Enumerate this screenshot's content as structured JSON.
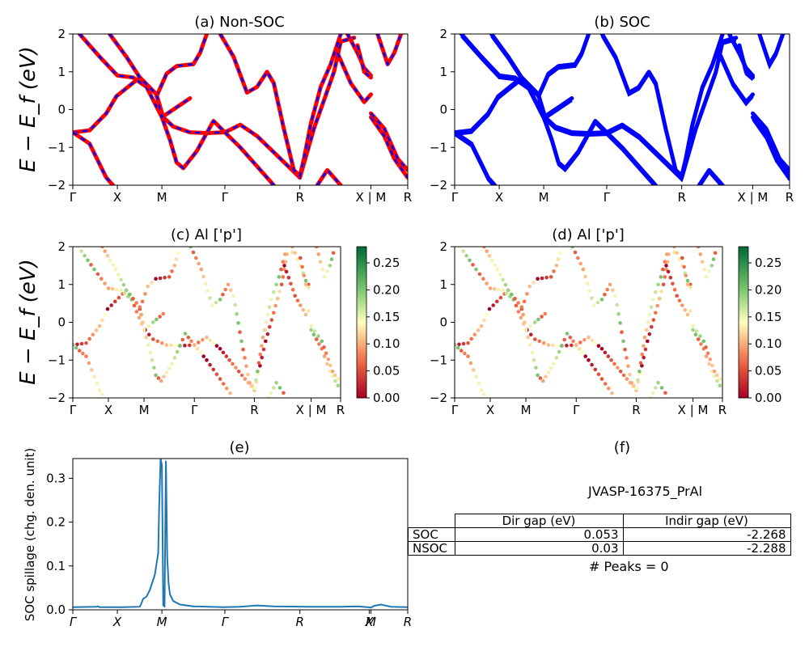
{
  "panels": {
    "a": {
      "title": "(a) Non-SOC",
      "ylabel": "E − E_f (eV)"
    },
    "b": {
      "title": "(b) SOC"
    },
    "c": {
      "title": "(c)  Al ['p']",
      "ylabel": "E − E_f (eV)"
    },
    "d": {
      "title": "(d) Al ['p']"
    },
    "e": {
      "title": "(e)",
      "ylabel": "SOC spillage (chg. den. unit)"
    },
    "f": {
      "title": "(f)"
    }
  },
  "table": {
    "title": "JVASP-16375_PrAl",
    "headers": [
      "",
      "Dir gap (eV)",
      "Indir gap (eV)"
    ],
    "rows": [
      {
        "label": "SOC",
        "dir": "0.053",
        "indir": "-2.268"
      },
      {
        "label": "NSOC",
        "dir": "0.03",
        "indir": "-2.288"
      }
    ],
    "peaks": "# Peaks = 0"
  },
  "chart_data": [
    {
      "type": "line",
      "title": "(a) Non-SOC",
      "ylabel": "E − E_f (eV)",
      "ylim": [
        -2,
        2
      ],
      "yticks": [
        "2",
        "1",
        "0",
        "−1",
        "−2"
      ],
      "kpath_labels": [
        "Γ",
        "X",
        "M",
        "Γ",
        "R",
        "X | M",
        "R"
      ],
      "kpath_pos": [
        0,
        0.133,
        0.266,
        0.454,
        0.678,
        0.89,
        1
      ],
      "colors": {
        "bands": "#ff0000",
        "overlay": "#0000ff"
      },
      "series": [
        {
          "values": [
            [
              0,
              -0.6
            ],
            [
              0.05,
              -0.55
            ],
            [
              0.1,
              -0.1
            ],
            [
              0.13,
              0.35
            ],
            [
              0.2,
              0.85
            ],
            [
              0.25,
              0.4
            ],
            [
              0.27,
              -0.2
            ],
            [
              0.3,
              -0.45
            ],
            [
              0.35,
              -0.6
            ],
            [
              0.4,
              -0.62
            ],
            [
              0.454,
              -0.6
            ],
            [
              0.5,
              -0.4
            ],
            [
              0.55,
              -0.7
            ],
            [
              0.62,
              -1.3
            ],
            [
              0.678,
              -1.8
            ],
            [
              0.72,
              -0.5
            ],
            [
              0.78,
              1.0
            ],
            [
              0.8,
              1.8
            ],
            [
              0.84,
              1.9
            ]
          ]
        },
        {
          "values": [
            [
              0,
              -0.6
            ],
            [
              0.05,
              -0.9
            ],
            [
              0.1,
              -1.8
            ],
            [
              0.12,
              -2.0
            ]
          ]
        },
        {
          "values": [
            [
              0.02,
              2.0
            ],
            [
              0.08,
              1.4
            ],
            [
              0.133,
              0.9
            ],
            [
              0.18,
              0.85
            ],
            [
              0.22,
              0.6
            ],
            [
              0.266,
              -0.2
            ],
            [
              0.29,
              -0.8
            ],
            [
              0.31,
              -1.4
            ],
            [
              0.33,
              -1.55
            ],
            [
              0.37,
              -1.1
            ],
            [
              0.42,
              -0.3
            ],
            [
              0.454,
              -0.6
            ]
          ]
        },
        {
          "values": [
            [
              0.25,
              0.35
            ],
            [
              0.28,
              0.95
            ],
            [
              0.31,
              1.15
            ],
            [
              0.36,
              1.2
            ],
            [
              0.38,
              1.5
            ],
            [
              0.4,
              2.0
            ]
          ]
        },
        {
          "values": [
            [
              0.11,
              2.0
            ],
            [
              0.16,
              1.4
            ],
            [
              0.2,
              0.85
            ],
            [
              0.25,
              0.4
            ],
            [
              0.266,
              -0.2
            ],
            [
              0.3,
              0.0
            ],
            [
              0.35,
              0.3
            ]
          ]
        },
        {
          "values": [
            [
              0.44,
              2.0
            ],
            [
              0.48,
              1.4
            ],
            [
              0.52,
              0.45
            ],
            [
              0.55,
              0.6
            ],
            [
              0.58,
              1.0
            ],
            [
              0.6,
              0.7
            ],
            [
              0.63,
              -0.5
            ],
            [
              0.66,
              -1.6
            ],
            [
              0.678,
              -1.75
            ],
            [
              0.69,
              -1.3
            ],
            [
              0.71,
              -0.4
            ],
            [
              0.74,
              0.6
            ],
            [
              0.77,
              1.2
            ],
            [
              0.8,
              2.0
            ]
          ]
        },
        {
          "values": [
            [
              0.454,
              -0.6
            ],
            [
              0.5,
              -1.0
            ],
            [
              0.55,
              -1.5
            ],
            [
              0.6,
              -2.0
            ]
          ]
        },
        {
          "values": [
            [
              0.73,
              -2.0
            ],
            [
              0.76,
              -1.6
            ],
            [
              0.8,
              -2.0
            ]
          ]
        },
        {
          "values": [
            [
              0.82,
              2.0
            ],
            [
              0.85,
              1.5
            ],
            [
              0.87,
              1.1
            ],
            [
              0.89,
              0.9
            ]
          ]
        },
        {
          "values": [
            [
              0.79,
              1.5
            ],
            [
              0.83,
              0.7
            ],
            [
              0.87,
              0.2
            ],
            [
              0.89,
              0.4
            ]
          ]
        },
        {
          "values": [
            [
              0.89,
              -0.2
            ],
            [
              0.93,
              -0.7
            ],
            [
              0.96,
              -1.3
            ],
            [
              1,
              -1.8
            ]
          ]
        },
        {
          "values": [
            [
              0.89,
              -0.1
            ],
            [
              0.93,
              -0.5
            ],
            [
              0.97,
              -1.3
            ],
            [
              1,
              -1.6
            ]
          ]
        },
        {
          "values": [
            [
              0.85,
              1.7
            ],
            [
              0.87,
              1.0
            ],
            [
              0.89,
              0.85
            ]
          ]
        },
        {
          "values": [
            [
              0.91,
              2.0
            ],
            [
              0.94,
              1.2
            ],
            [
              0.96,
              1.5
            ],
            [
              0.98,
              2.0
            ]
          ]
        }
      ]
    },
    {
      "type": "line",
      "title": "(b) SOC",
      "ylim": [
        -2,
        2
      ],
      "yticks": [
        "2",
        "1",
        "0",
        "−1",
        "−2"
      ],
      "kpath_labels": [
        "Γ",
        "X",
        "M",
        "Γ",
        "R",
        "X | M",
        "R"
      ],
      "kpath_pos": [
        0,
        0.133,
        0.266,
        0.454,
        0.678,
        0.89,
        1
      ],
      "colors": {
        "bands": "#0000ff"
      }
    },
    {
      "type": "scatter",
      "title": "(c)  Al ['p']",
      "ylabel": "E − E_f (eV)",
      "ylim": [
        -2,
        2
      ],
      "yticks": [
        "2",
        "1",
        "0",
        "−1",
        "−2"
      ],
      "kpath_labels": [
        "Γ",
        "X",
        "M",
        "Γ",
        "R",
        "X | M",
        "R"
      ],
      "kpath_pos": [
        0,
        0.133,
        0.266,
        0.454,
        0.678,
        0.89,
        1
      ],
      "colorbar": {
        "min": 0.0,
        "max": 0.28,
        "ticks": [
          "0.25",
          "0.20",
          "0.15",
          "0.10",
          "0.05",
          "0.00"
        ],
        "colormap": "RdYlGn"
      }
    },
    {
      "type": "scatter",
      "title": "(d) Al ['p']",
      "ylim": [
        -2,
        2
      ],
      "yticks": [
        "2",
        "1",
        "0",
        "−1",
        "−2"
      ],
      "kpath_labels": [
        "Γ",
        "X",
        "M",
        "Γ",
        "R",
        "X | M",
        "R"
      ],
      "kpath_pos": [
        0,
        0.133,
        0.266,
        0.454,
        0.678,
        0.89,
        1
      ],
      "colorbar": {
        "min": 0.0,
        "max": 0.28,
        "ticks": [
          "0.25",
          "0.20",
          "0.15",
          "0.10",
          "0.05",
          "0.00"
        ],
        "colormap": "RdYlGn"
      }
    },
    {
      "type": "line",
      "title": "(e)",
      "ylabel": "SOC spillage (chg. den. unit)",
      "ylim": [
        0,
        0.345
      ],
      "yticks": [
        "0.3",
        "0.2",
        "0.1",
        "0.0"
      ],
      "kpath_labels": [
        "Γ",
        "X",
        "M",
        "Γ",
        "R",
        "X",
        "M",
        "R"
      ],
      "kpath_pos": [
        0,
        0.133,
        0.266,
        0.454,
        0.678,
        0.885,
        0.89,
        1
      ],
      "colors": {
        "line": "#1f77b4"
      },
      "x": [
        0,
        0.07,
        0.075,
        0.08,
        0.15,
        0.2,
        0.205,
        0.21,
        0.22,
        0.23,
        0.245,
        0.255,
        0.258,
        0.262,
        0.266,
        0.27,
        0.274,
        0.278,
        0.282,
        0.286,
        0.29,
        0.3,
        0.32,
        0.36,
        0.45,
        0.5,
        0.55,
        0.6,
        0.7,
        0.8,
        0.85,
        0.88,
        0.89,
        0.9,
        0.92,
        0.95,
        1
      ],
      "y": [
        0.006,
        0.007,
        0.008,
        0.006,
        0.006,
        0.007,
        0.015,
        0.025,
        0.03,
        0.045,
        0.08,
        0.13,
        0.24,
        0.345,
        0.33,
        0.01,
        0.008,
        0.34,
        0.12,
        0.06,
        0.035,
        0.02,
        0.012,
        0.008,
        0.006,
        0.007,
        0.01,
        0.008,
        0.007,
        0.007,
        0.008,
        0.006,
        0.005,
        0.009,
        0.012,
        0.007,
        0.006
      ]
    }
  ]
}
